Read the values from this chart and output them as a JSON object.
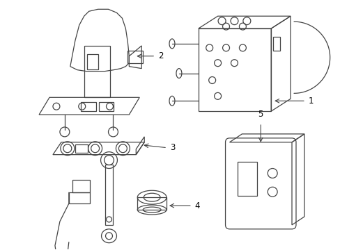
{
  "bg_color": "#ffffff",
  "line_color": "#444444",
  "label_color": "#000000",
  "lw": 0.9,
  "label_fontsize": 8.5
}
